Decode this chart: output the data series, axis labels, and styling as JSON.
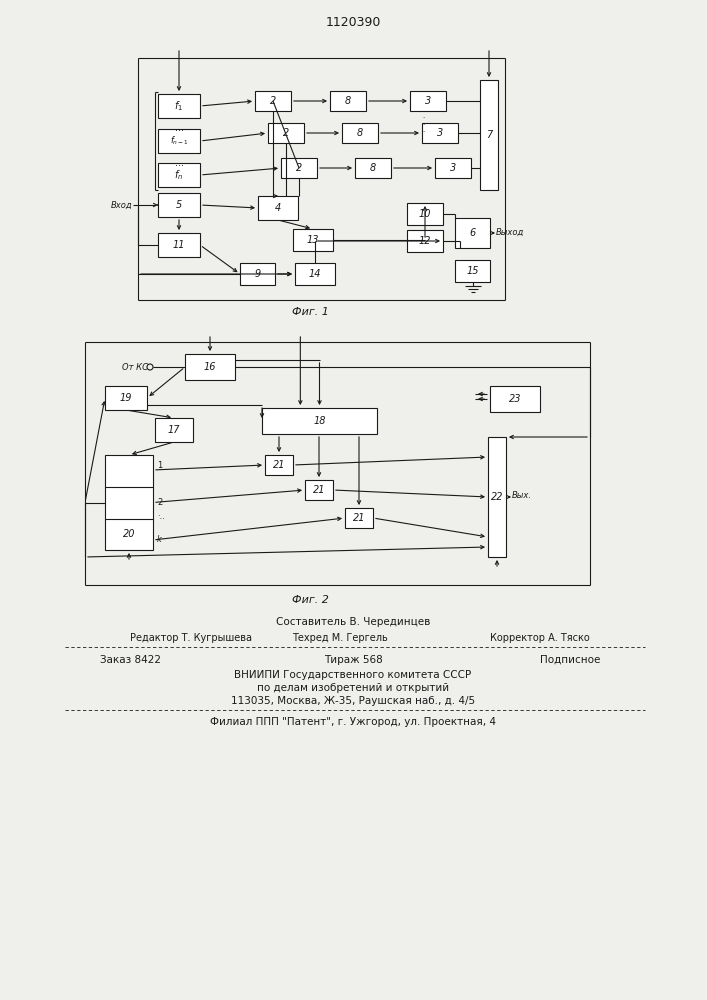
{
  "title": "1120390",
  "fig1_caption": "Фиг. 1",
  "fig2_caption": "Фиг. 2",
  "footer": {
    "line0": "Составитель В. Черединцев",
    "line1": "Редактор Т. Кугрышева",
    "line1b": "Техред М. Гергель",
    "line1c": "Корректор А. Тяско",
    "line2a": "Заказ 8422",
    "line2b": "Тираж 568",
    "line2c": "Подписное",
    "line3": "ВНИИПИ Государственного комитета СССР",
    "line4": "по делам изобретений и открытий",
    "line5": "113035, Москва, Ж-35, Раушская наб., д. 4/5",
    "line6": "Филиал ППП \"Патент\", г. Ужгород, ул. Проектная, 4"
  },
  "bg_color": "#efefeb",
  "box_color": "#ffffff",
  "line_color": "#1a1a1a"
}
